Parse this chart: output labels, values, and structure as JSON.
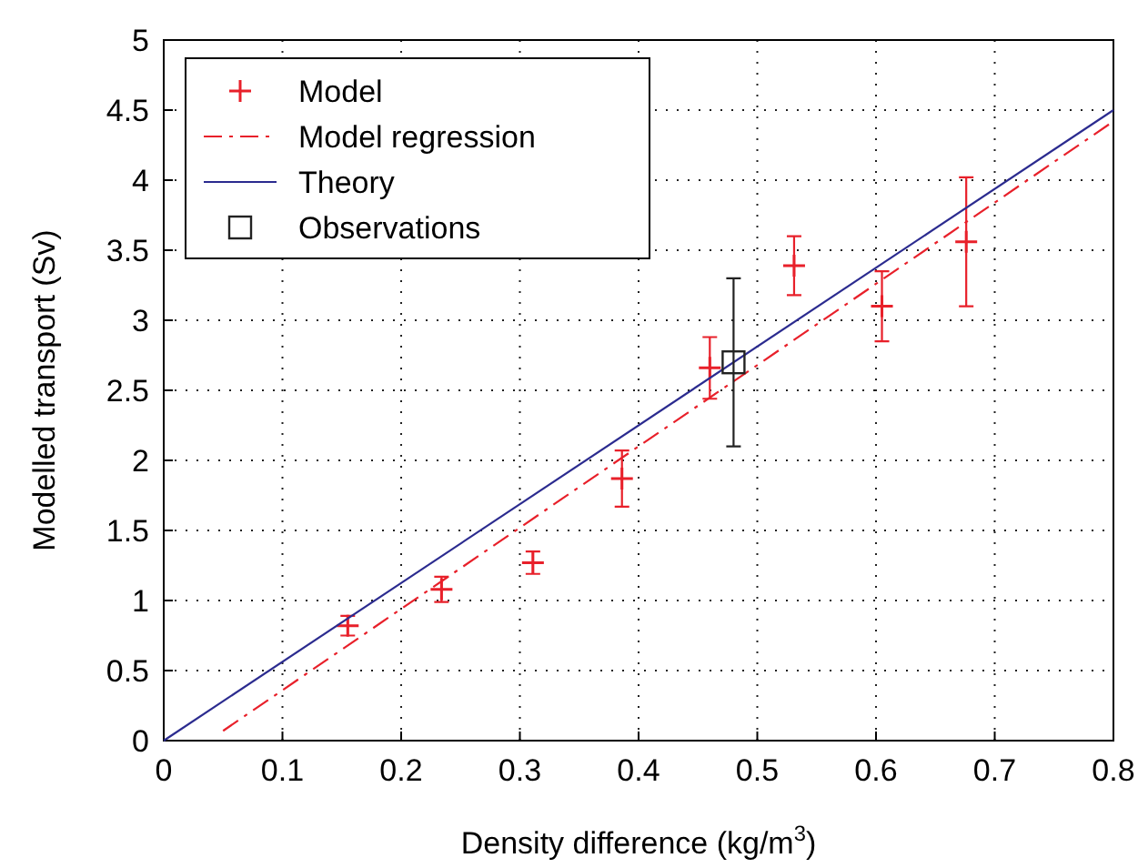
{
  "chart_data": {
    "type": "scatter",
    "xlabel": "Density difference (kg/m$^{3}$)",
    "ylabel": "Modelled transport (Sv)",
    "xlim": [
      0,
      0.8
    ],
    "ylim": [
      0,
      5
    ],
    "xticks": [
      0,
      0.1,
      0.2,
      0.3,
      0.4,
      0.5,
      0.6,
      0.7,
      0.8
    ],
    "yticks": [
      0,
      0.5,
      1,
      1.5,
      2,
      2.5,
      3,
      3.5,
      4,
      4.5,
      5
    ],
    "grid": true,
    "legend": "top left",
    "series": [
      {
        "name": "Model",
        "marker": "cross",
        "color": "#e8202a",
        "x": [
          0.155,
          0.234,
          0.311,
          0.386,
          0.46,
          0.531,
          0.605,
          0.676
        ],
        "values": [
          0.82,
          1.08,
          1.27,
          1.87,
          2.66,
          3.39,
          3.1,
          3.56
        ],
        "errors": [
          0.07,
          0.09,
          0.08,
          0.2,
          0.22,
          0.21,
          0.25,
          0.46
        ]
      },
      {
        "name": "Model regression",
        "type": "line",
        "line_style": "dashed",
        "marker": "none",
        "color": "#e8202a",
        "x": [
          0.05,
          0.8
        ],
        "values": [
          0.07,
          4.42
        ]
      },
      {
        "name": "Theory",
        "type": "line",
        "line_style": "solid",
        "marker": "none",
        "color": "#2b2b8f",
        "x": [
          0,
          0.8
        ],
        "values": [
          0,
          4.5
        ]
      },
      {
        "name": "Observations",
        "marker": "square",
        "color": "#222222",
        "x": [
          0.48
        ],
        "values": [
          2.7
        ],
        "errors": [
          0.6
        ]
      }
    ]
  }
}
